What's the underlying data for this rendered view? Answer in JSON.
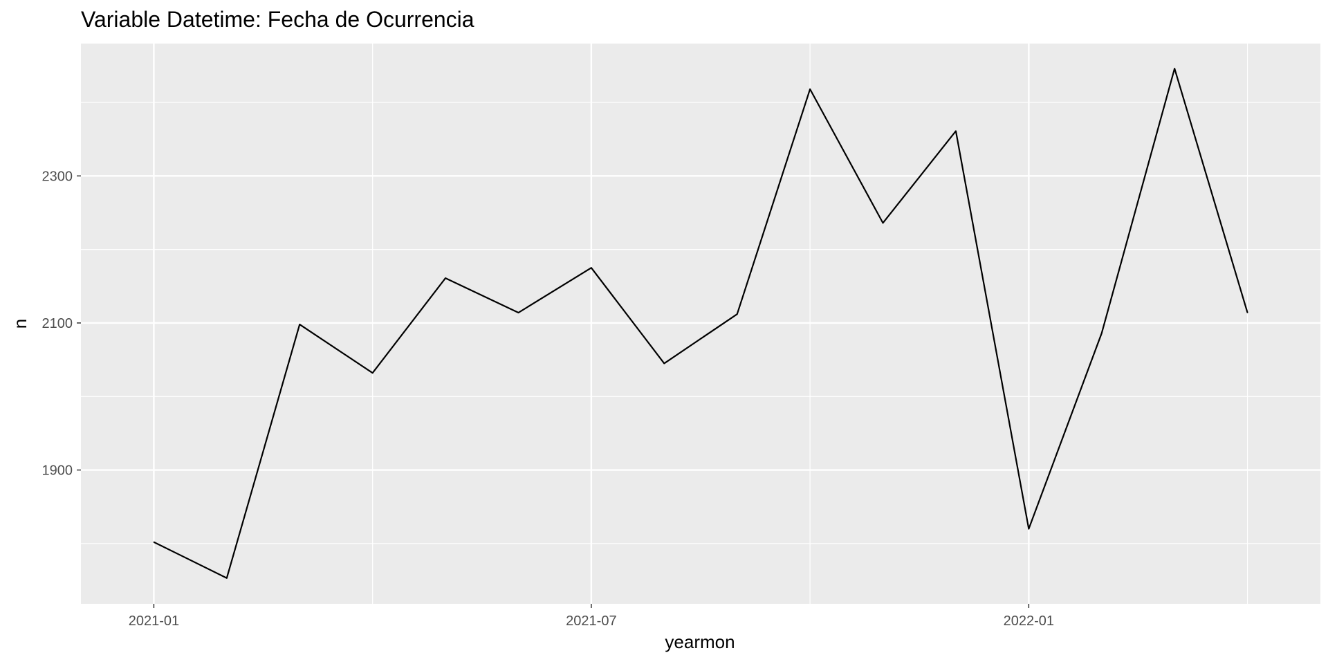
{
  "chart_data": {
    "type": "line",
    "title": "Variable Datetime: Fecha de Ocurrencia",
    "xlabel": "yearmon",
    "ylabel": "n",
    "x": [
      "2021-01",
      "2021-02",
      "2021-03",
      "2021-04",
      "2021-05",
      "2021-06",
      "2021-07",
      "2021-08",
      "2021-09",
      "2021-10",
      "2021-11",
      "2021-12",
      "2022-01",
      "2022-02",
      "2022-03",
      "2022-04"
    ],
    "series": [
      {
        "values": [
          1802,
          1753,
          2098,
          2032,
          2161,
          2114,
          2175,
          2045,
          2112,
          2418,
          2236,
          2361,
          1820,
          2086,
          2446,
          2114
        ]
      }
    ],
    "x_ticks": [
      {
        "label": "2021-01",
        "index": 0
      },
      {
        "label": "2021-07",
        "index": 6
      },
      {
        "label": "2022-01",
        "index": 12
      }
    ],
    "y_ticks": [
      1900,
      2100,
      2300
    ],
    "xlim": [
      "2020-12",
      "2022-05"
    ],
    "ylim": [
      1718,
      2480
    ],
    "grid": true,
    "line_color": "#000000",
    "panel_background": "#ebebeb",
    "grid_color": "#ffffff"
  }
}
